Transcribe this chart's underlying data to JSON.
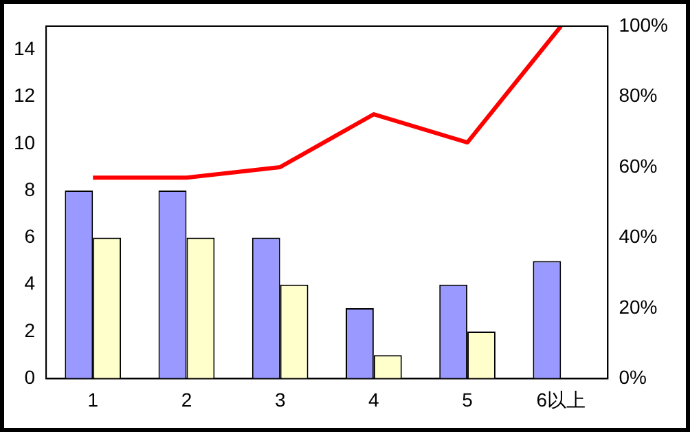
{
  "chart_data": {
    "type": "bar",
    "categories": [
      "1",
      "2",
      "3",
      "4",
      "5",
      "6以上"
    ],
    "series": [
      {
        "color": "#9999ff",
        "values": [
          8,
          8,
          6,
          3,
          4,
          5
        ]
      },
      {
        "color": "#ffffcc",
        "values": [
          6,
          6,
          4,
          1,
          2,
          null
        ]
      },
      {
        "type": "line",
        "axis": "y2",
        "color": "#ff0000",
        "values": [
          57,
          57,
          60,
          75,
          67,
          100
        ]
      }
    ],
    "ylim": [
      0,
      15
    ],
    "yticks": [
      0,
      2,
      4,
      6,
      8,
      10,
      12,
      14
    ],
    "y2lim": [
      0,
      100
    ],
    "y2ticks": [
      {
        "value": 0,
        "label": "0%"
      },
      {
        "value": 20,
        "label": "20%"
      },
      {
        "value": 40,
        "label": "40%"
      },
      {
        "value": 60,
        "label": "60%"
      },
      {
        "value": 80,
        "label": "80%"
      },
      {
        "value": 100,
        "label": "100%"
      }
    ],
    "grid": false,
    "legend": false,
    "marker": "none",
    "line_style": "solid"
  }
}
